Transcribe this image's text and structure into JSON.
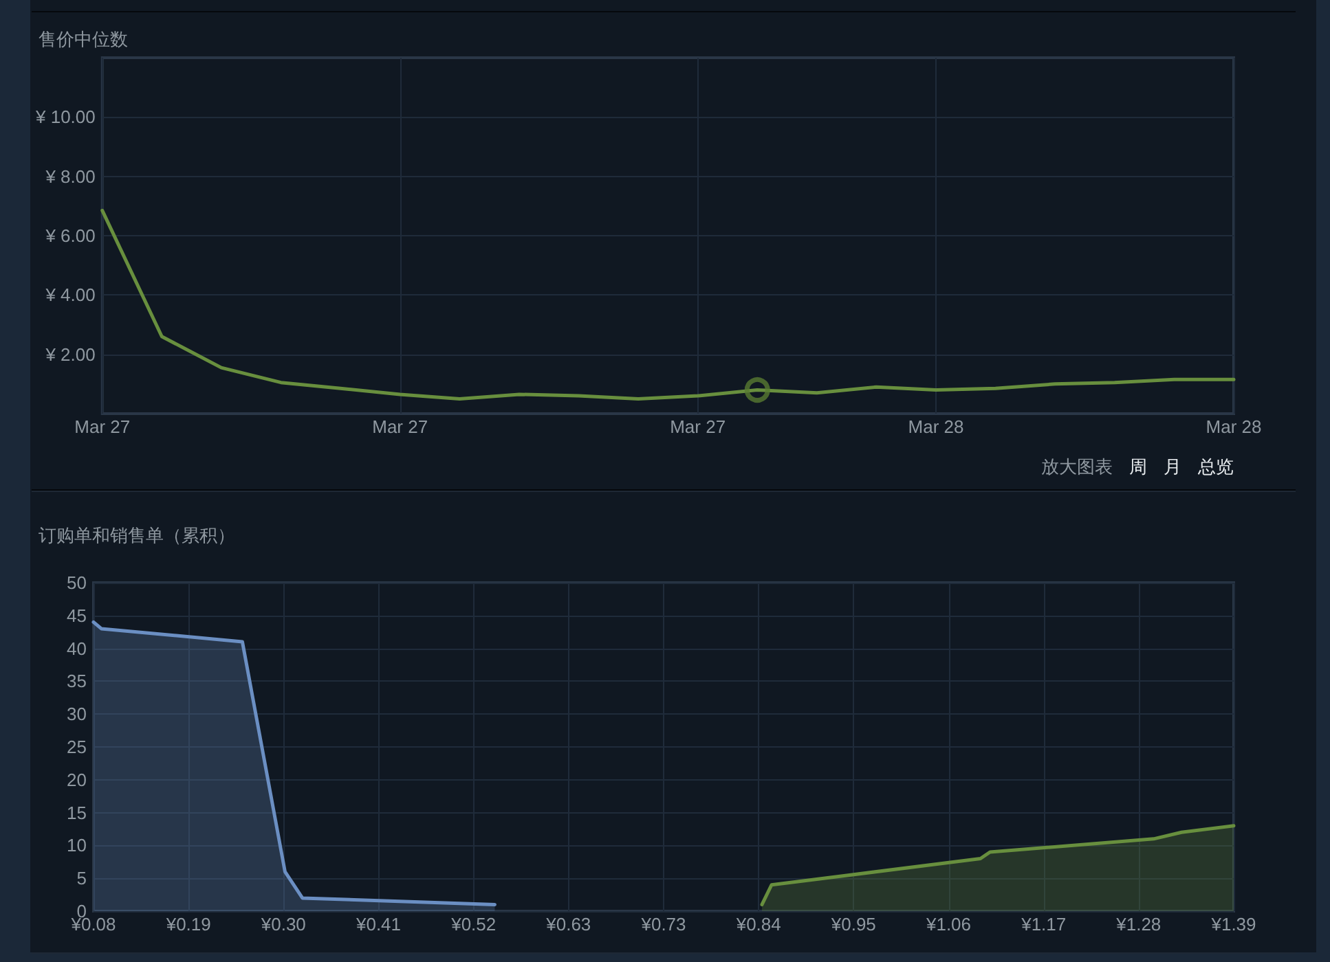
{
  "chart_data": [
    {
      "type": "line",
      "title": "售价中位数",
      "categories": [
        "Mar 27",
        null,
        null,
        null,
        null,
        "Mar 27",
        null,
        null,
        null,
        null,
        "Mar 27",
        null,
        null,
        null,
        "Mar 28",
        null,
        null,
        null,
        null,
        "Mar 28"
      ],
      "ylim": [
        0,
        12
      ],
      "yticks": [
        {
          "value": 2,
          "label": "¥ 2.00"
        },
        {
          "value": 4,
          "label": "¥ 4.00"
        },
        {
          "value": 6,
          "label": "¥ 6.00"
        },
        {
          "value": 8,
          "label": "¥ 8.00"
        },
        {
          "value": 10,
          "label": "¥ 10.00"
        }
      ],
      "series": [
        {
          "color": "#688f3e",
          "values": [
            6.85,
            2.6,
            1.55,
            1.05,
            0.85,
            0.65,
            0.5,
            0.65,
            0.6,
            0.5,
            0.6,
            0.8,
            0.7,
            0.9,
            0.8,
            0.85,
            1.0,
            1.05,
            1.15,
            1.15
          ]
        },
        {
          "type": "scatter",
          "marker": "circle",
          "color": "#577a32",
          "values": [
            null,
            null,
            null,
            null,
            null,
            null,
            null,
            null,
            null,
            null,
            null,
            0.8,
            null,
            null,
            null,
            null,
            null,
            null,
            null,
            null
          ]
        }
      ],
      "marker": "none",
      "grid": true,
      "annotations": [
        "放大图表",
        "周",
        "月",
        "总览"
      ]
    },
    {
      "type": "area",
      "title": "订购单和销售单（累积）",
      "xlim": [
        0.08,
        1.39
      ],
      "xticks": [
        {
          "value": 0.08,
          "label": "¥0.08"
        },
        {
          "value": 0.1892,
          "label": "¥0.19"
        },
        {
          "value": 0.2983,
          "label": "¥0.30"
        },
        {
          "value": 0.4075,
          "label": "¥0.41"
        },
        {
          "value": 0.5167,
          "label": "¥0.52"
        },
        {
          "value": 0.6258,
          "label": "¥0.63"
        },
        {
          "value": 0.735,
          "label": "¥0.73"
        },
        {
          "value": 0.8442,
          "label": "¥0.84"
        },
        {
          "value": 0.9533,
          "label": "¥0.95"
        },
        {
          "value": 1.0625,
          "label": "¥1.06"
        },
        {
          "value": 1.1717,
          "label": "¥1.17"
        },
        {
          "value": 1.2808,
          "label": "¥1.28"
        },
        {
          "value": 1.39,
          "label": "¥1.39"
        }
      ],
      "ylim": [
        0,
        50
      ],
      "yticks": [
        0,
        5,
        10,
        15,
        20,
        25,
        30,
        35,
        40,
        45,
        50
      ],
      "series": [
        {
          "color": "#6b8fc3",
          "x": [
            0.08,
            0.089,
            0.251,
            0.3,
            0.32,
            0.541
          ],
          "values": [
            44,
            43,
            41,
            6,
            2,
            1
          ]
        },
        {
          "color": "#688f3e",
          "x": [
            0.848,
            0.859,
            1.099,
            1.11,
            1.298,
            1.33,
            1.39
          ],
          "values": [
            1,
            4,
            8,
            9,
            11,
            12,
            13
          ]
        }
      ],
      "marker": "none",
      "grid": true
    }
  ]
}
